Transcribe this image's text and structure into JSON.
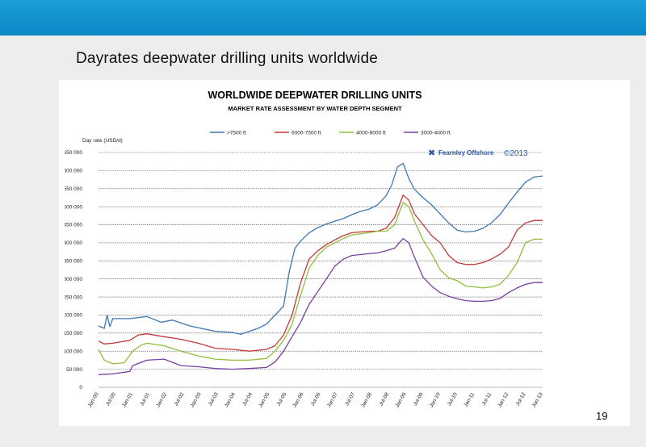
{
  "slide": {
    "title": "Dayrates deepwater drilling units worldwide",
    "page_number": "19"
  },
  "colors": {
    "top_bar": "#1294d0",
    "background_band": "#ededeb",
    "grid": "#444444",
    "brand": "#2a58a3"
  },
  "chart_data": {
    "type": "line",
    "title": "WORLDWIDE DEEPWATER DRILLING UNITS",
    "subtitle": "MARKET RATE ASSESSMENT BY WATER DEPTH SEGMENT",
    "ylabel": "Day rate (USD/d)",
    "xlabel": "",
    "ylim": [
      0,
      650000
    ],
    "y_ticks": [
      0,
      50000,
      100000,
      150000,
      200000,
      250000,
      300000,
      350000,
      400000,
      450000,
      500000,
      550000,
      600000,
      650000
    ],
    "y_tick_labels": [
      "0",
      "50 000",
      "100 000",
      "150 000",
      "200 000",
      "250 000",
      "300 000",
      "350 000",
      "400 000",
      "450 000",
      "500 000",
      "550 000",
      "600 000",
      "650 000"
    ],
    "grid": "horizontal dashed",
    "legend_position": "top",
    "x_tick_labels": [
      "Jan-00",
      "Jul-00",
      "Jan-01",
      "Jul-01",
      "Jan-02",
      "Jul-02",
      "Jan-03",
      "Jul-03",
      "Jan-04",
      "Jul-04",
      "Jan-05",
      "Jul-05",
      "Jan-06",
      "Jul-06",
      "Jan-07",
      "Jul-07",
      "Jan-08",
      "Jul-08",
      "Jan-09",
      "Jul-09",
      "Jan-10",
      "Jul-10",
      "Jan-11",
      "Jul-11",
      "Jan-12",
      "Jul-12",
      "Jan-13"
    ],
    "x_start": "Jan-00",
    "x_end": "Jan-13",
    "annotation": {
      "brand": "Fearnley Offshore",
      "copyright": "©2013"
    },
    "series": [
      {
        "name": ">7500 ft",
        "color": "#3c77b4",
        "points": [
          [
            "2000-01",
            170000
          ],
          [
            "2000-03",
            163000
          ],
          [
            "2000-04",
            200000
          ],
          [
            "2000-05",
            168000
          ],
          [
            "2000-06",
            190000
          ],
          [
            "2000-12",
            190000
          ],
          [
            "2001-06",
            196000
          ],
          [
            "2001-11",
            180000
          ],
          [
            "2002-03",
            186000
          ],
          [
            "2002-09",
            170000
          ],
          [
            "2003-06",
            155000
          ],
          [
            "2003-12",
            152000
          ],
          [
            "2004-03",
            147000
          ],
          [
            "2004-06",
            155000
          ],
          [
            "2004-09",
            163000
          ],
          [
            "2004-12",
            175000
          ],
          [
            "2005-03",
            200000
          ],
          [
            "2005-06",
            225000
          ],
          [
            "2005-08",
            320000
          ],
          [
            "2005-10",
            385000
          ],
          [
            "2005-12",
            405000
          ],
          [
            "2006-03",
            428000
          ],
          [
            "2006-06",
            442000
          ],
          [
            "2006-09",
            452000
          ],
          [
            "2006-12",
            460000
          ],
          [
            "2007-03",
            467000
          ],
          [
            "2007-06",
            478000
          ],
          [
            "2007-09",
            487000
          ],
          [
            "2007-12",
            493000
          ],
          [
            "2008-03",
            505000
          ],
          [
            "2008-06",
            530000
          ],
          [
            "2008-08",
            560000
          ],
          [
            "2008-10",
            610000
          ],
          [
            "2008-12",
            620000
          ],
          [
            "2009-02",
            578000
          ],
          [
            "2009-04",
            548000
          ],
          [
            "2009-07",
            525000
          ],
          [
            "2009-10",
            505000
          ],
          [
            "2010-01",
            480000
          ],
          [
            "2010-04",
            455000
          ],
          [
            "2010-07",
            435000
          ],
          [
            "2010-10",
            430000
          ],
          [
            "2011-01",
            432000
          ],
          [
            "2011-04",
            440000
          ],
          [
            "2011-07",
            455000
          ],
          [
            "2011-10",
            478000
          ],
          [
            "2012-01",
            510000
          ],
          [
            "2012-04",
            540000
          ],
          [
            "2012-07",
            568000
          ],
          [
            "2012-10",
            582000
          ],
          [
            "2013-01",
            585000
          ]
        ]
      },
      {
        "name": "6000-7500 ft",
        "color": "#c43a3a",
        "points": [
          [
            "2000-01",
            128000
          ],
          [
            "2000-03",
            120000
          ],
          [
            "2000-06",
            122000
          ],
          [
            "2000-12",
            130000
          ],
          [
            "2001-03",
            145000
          ],
          [
            "2001-06",
            148000
          ],
          [
            "2001-12",
            140000
          ],
          [
            "2002-06",
            133000
          ],
          [
            "2002-12",
            122000
          ],
          [
            "2003-06",
            108000
          ],
          [
            "2003-12",
            105000
          ],
          [
            "2004-06",
            100000
          ],
          [
            "2004-12",
            105000
          ],
          [
            "2005-03",
            115000
          ],
          [
            "2005-06",
            145000
          ],
          [
            "2005-09",
            200000
          ],
          [
            "2005-12",
            290000
          ],
          [
            "2006-03",
            355000
          ],
          [
            "2006-06",
            378000
          ],
          [
            "2006-09",
            395000
          ],
          [
            "2006-12",
            408000
          ],
          [
            "2007-03",
            420000
          ],
          [
            "2007-06",
            428000
          ],
          [
            "2007-12",
            432000
          ],
          [
            "2008-03",
            432000
          ],
          [
            "2008-06",
            440000
          ],
          [
            "2008-09",
            470000
          ],
          [
            "2008-12",
            532000
          ],
          [
            "2009-02",
            518000
          ],
          [
            "2009-04",
            480000
          ],
          [
            "2009-07",
            450000
          ],
          [
            "2009-10",
            420000
          ],
          [
            "2010-01",
            400000
          ],
          [
            "2010-04",
            365000
          ],
          [
            "2010-07",
            345000
          ],
          [
            "2010-10",
            340000
          ],
          [
            "2011-01",
            340000
          ],
          [
            "2011-04",
            345000
          ],
          [
            "2011-07",
            355000
          ],
          [
            "2011-10",
            368000
          ],
          [
            "2012-01",
            388000
          ],
          [
            "2012-04",
            435000
          ],
          [
            "2012-07",
            455000
          ],
          [
            "2012-10",
            462000
          ],
          [
            "2013-01",
            462000
          ]
        ]
      },
      {
        "name": "4000-6000 ft",
        "color": "#8dbf3c",
        "points": [
          [
            "2000-01",
            105000
          ],
          [
            "2000-03",
            75000
          ],
          [
            "2000-06",
            65000
          ],
          [
            "2000-10",
            68000
          ],
          [
            "2001-01",
            100000
          ],
          [
            "2001-04",
            117000
          ],
          [
            "2001-06",
            122000
          ],
          [
            "2001-12",
            115000
          ],
          [
            "2002-06",
            100000
          ],
          [
            "2002-12",
            87000
          ],
          [
            "2003-06",
            78000
          ],
          [
            "2003-12",
            75000
          ],
          [
            "2004-06",
            75000
          ],
          [
            "2004-12",
            80000
          ],
          [
            "2005-03",
            100000
          ],
          [
            "2005-06",
            130000
          ],
          [
            "2005-09",
            175000
          ],
          [
            "2005-12",
            255000
          ],
          [
            "2006-03",
            330000
          ],
          [
            "2006-06",
            365000
          ],
          [
            "2006-09",
            388000
          ],
          [
            "2006-12",
            400000
          ],
          [
            "2007-03",
            412000
          ],
          [
            "2007-06",
            422000
          ],
          [
            "2007-12",
            428000
          ],
          [
            "2008-03",
            432000
          ],
          [
            "2008-06",
            432000
          ],
          [
            "2008-09",
            450000
          ],
          [
            "2008-12",
            512000
          ],
          [
            "2009-02",
            500000
          ],
          [
            "2009-04",
            460000
          ],
          [
            "2009-07",
            408000
          ],
          [
            "2009-10",
            370000
          ],
          [
            "2010-01",
            325000
          ],
          [
            "2010-04",
            303000
          ],
          [
            "2010-07",
            295000
          ],
          [
            "2010-10",
            280000
          ],
          [
            "2011-01",
            278000
          ],
          [
            "2011-04",
            275000
          ],
          [
            "2011-07",
            278000
          ],
          [
            "2011-10",
            285000
          ],
          [
            "2012-01",
            310000
          ],
          [
            "2012-04",
            345000
          ],
          [
            "2012-07",
            400000
          ],
          [
            "2012-10",
            410000
          ],
          [
            "2013-01",
            410000
          ]
        ]
      },
      {
        "name": "3000-4000 ft",
        "color": "#7a3fa0",
        "points": [
          [
            "2000-01",
            35000
          ],
          [
            "2000-06",
            37000
          ],
          [
            "2000-12",
            44000
          ],
          [
            "2001-01",
            60000
          ],
          [
            "2001-06",
            75000
          ],
          [
            "2001-12",
            78000
          ],
          [
            "2002-06",
            60000
          ],
          [
            "2002-12",
            57000
          ],
          [
            "2003-06",
            52000
          ],
          [
            "2003-12",
            50000
          ],
          [
            "2004-06",
            52000
          ],
          [
            "2004-12",
            55000
          ],
          [
            "2005-03",
            70000
          ],
          [
            "2005-06",
            100000
          ],
          [
            "2005-09",
            140000
          ],
          [
            "2005-12",
            180000
          ],
          [
            "2006-03",
            230000
          ],
          [
            "2006-06",
            265000
          ],
          [
            "2006-09",
            300000
          ],
          [
            "2006-12",
            335000
          ],
          [
            "2007-03",
            355000
          ],
          [
            "2007-06",
            365000
          ],
          [
            "2007-12",
            370000
          ],
          [
            "2008-03",
            372000
          ],
          [
            "2008-06",
            378000
          ],
          [
            "2008-09",
            385000
          ],
          [
            "2008-12",
            412000
          ],
          [
            "2009-02",
            400000
          ],
          [
            "2009-04",
            360000
          ],
          [
            "2009-07",
            305000
          ],
          [
            "2009-10",
            280000
          ],
          [
            "2010-01",
            262000
          ],
          [
            "2010-04",
            252000
          ],
          [
            "2010-07",
            245000
          ],
          [
            "2010-10",
            240000
          ],
          [
            "2011-01",
            238000
          ],
          [
            "2011-04",
            238000
          ],
          [
            "2011-07",
            240000
          ],
          [
            "2011-10",
            246000
          ],
          [
            "2012-01",
            262000
          ],
          [
            "2012-04",
            275000
          ],
          [
            "2012-07",
            285000
          ],
          [
            "2012-10",
            290000
          ],
          [
            "2013-01",
            290000
          ]
        ]
      }
    ]
  }
}
